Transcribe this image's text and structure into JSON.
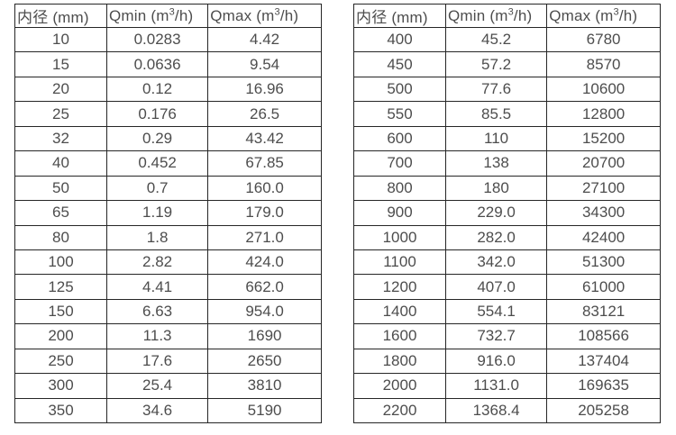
{
  "colors": {
    "background": "#ffffff",
    "text": "#4d4d4d",
    "border": "#262626"
  },
  "tables": [
    {
      "name": "flow-rate-table-dn10-350",
      "headers": [
        "内径 (mm)",
        "Qmin (m³/h)",
        "Qmax (m³/h)"
      ],
      "rows": [
        [
          "10",
          "0.0283",
          "4.42"
        ],
        [
          "15",
          "0.0636",
          "9.54"
        ],
        [
          "20",
          "0.12",
          "16.96"
        ],
        [
          "25",
          "0.176",
          "26.5"
        ],
        [
          "32",
          "0.29",
          "43.42"
        ],
        [
          "40",
          "0.452",
          "67.85"
        ],
        [
          "50",
          "0.7",
          "160.0"
        ],
        [
          "65",
          "1.19",
          "179.0"
        ],
        [
          "80",
          "1.8",
          "271.0"
        ],
        [
          "100",
          "2.82",
          "424.0"
        ],
        [
          "125",
          "4.41",
          "662.0"
        ],
        [
          "150",
          "6.63",
          "954.0"
        ],
        [
          "200",
          "11.3",
          "1690"
        ],
        [
          "250",
          "17.6",
          "2650"
        ],
        [
          "300",
          "25.4",
          "3810"
        ],
        [
          "350",
          "34.6",
          "5190"
        ]
      ]
    },
    {
      "name": "flow-rate-table-dn400-2200",
      "headers": [
        "内径 (mm)",
        "Qmin (m³/h)",
        "Qmax (m³/h)"
      ],
      "rows": [
        [
          "400",
          "45.2",
          "6780"
        ],
        [
          "450",
          "57.2",
          "8570"
        ],
        [
          "500",
          "77.6",
          "10600"
        ],
        [
          "550",
          "85.5",
          "12800"
        ],
        [
          "600",
          "110",
          "15200"
        ],
        [
          "700",
          "138",
          "20700"
        ],
        [
          "800",
          "180",
          "27100"
        ],
        [
          "900",
          "229.0",
          "34300"
        ],
        [
          "1000",
          "282.0",
          "42400"
        ],
        [
          "1100",
          "342.0",
          "51300"
        ],
        [
          "1200",
          "407.0",
          "61000"
        ],
        [
          "1400",
          "554.1",
          "83121"
        ],
        [
          "1600",
          "732.7",
          "108566"
        ],
        [
          "1800",
          "916.0",
          "137404"
        ],
        [
          "2000",
          "1131.0",
          "169635"
        ],
        [
          "2200",
          "1368.4",
          "205258"
        ]
      ]
    }
  ]
}
